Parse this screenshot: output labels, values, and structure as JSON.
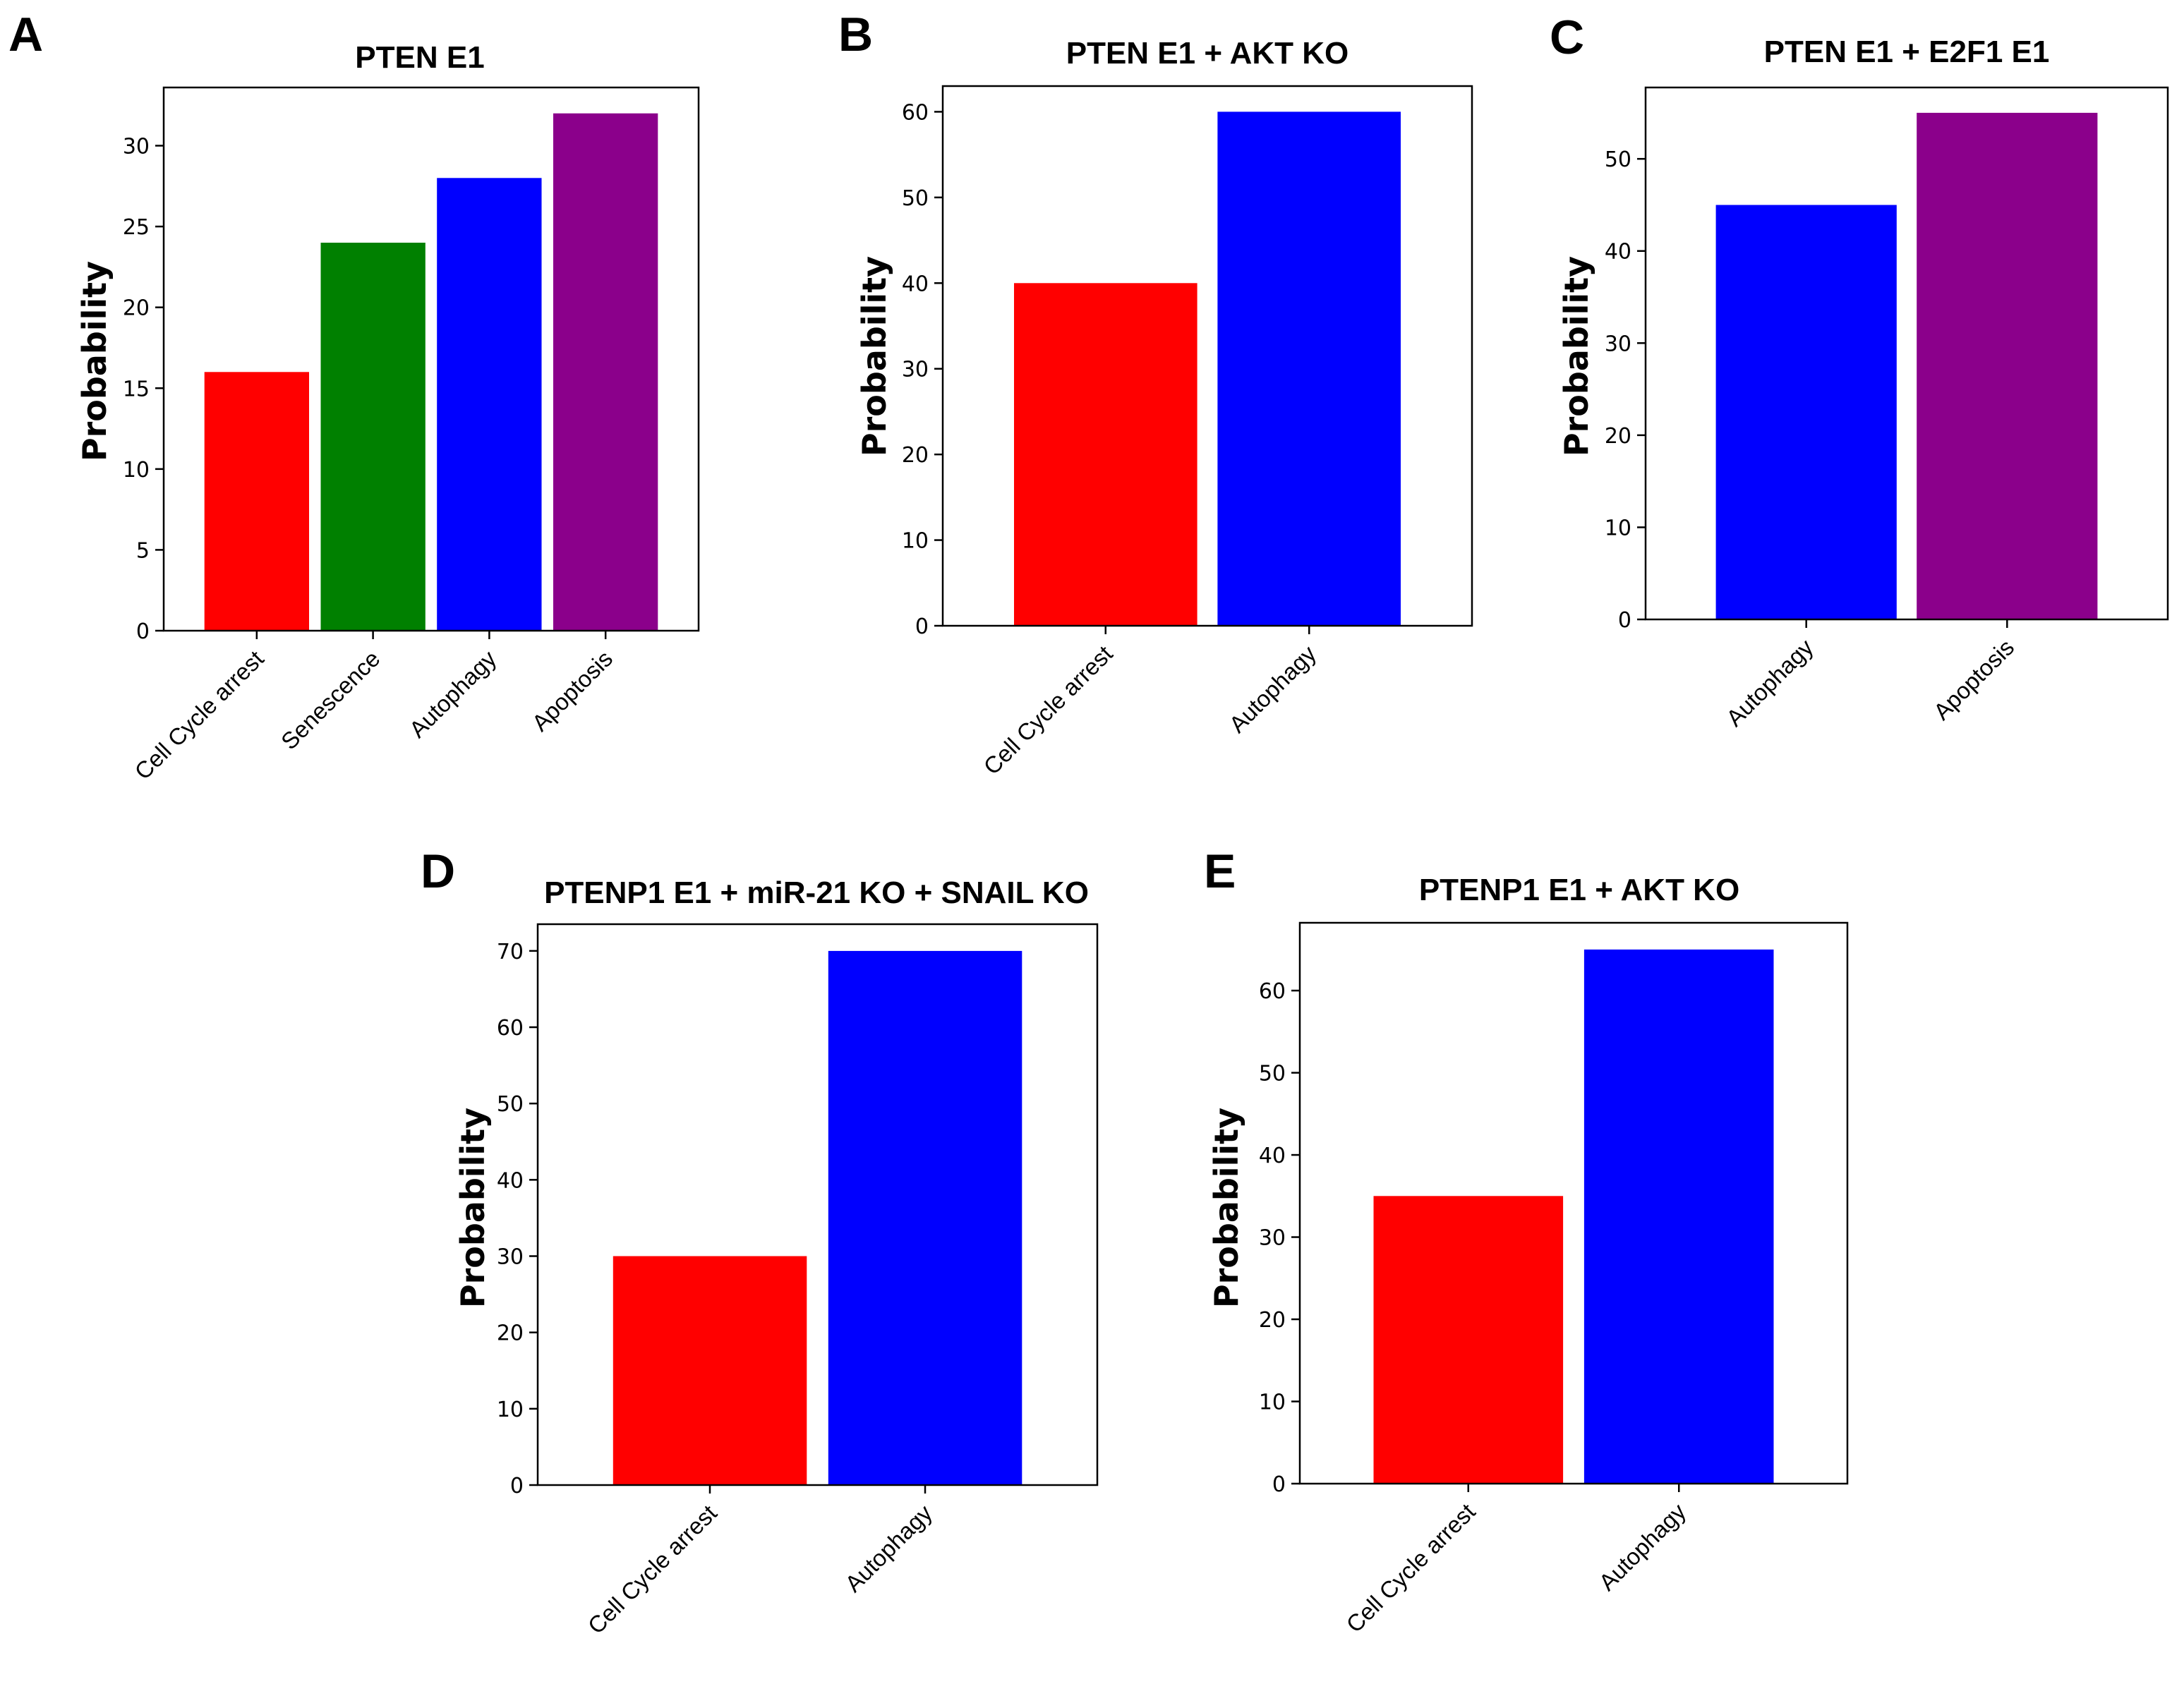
{
  "chart_data": [
    {
      "type": "bar",
      "panel": "A",
      "title": "PTEN E1",
      "ylabel": "Probability",
      "xlabel": "",
      "categories": [
        "Cell Cycle arrest",
        "Senescence",
        "Autophagy",
        "Apoptosis"
      ],
      "values": [
        16,
        24,
        28,
        32
      ],
      "colors": [
        "#ff0000",
        "#008000",
        "#0000ff",
        "#8b008b"
      ],
      "ylim": [
        0,
        33.6
      ],
      "yticks": [
        0,
        5,
        10,
        15,
        20,
        25,
        30
      ],
      "grid": false
    },
    {
      "type": "bar",
      "panel": "B",
      "title": "PTEN E1 + AKT KO",
      "ylabel": "Probability",
      "xlabel": "",
      "categories": [
        "Cell Cycle arrest",
        "Autophagy"
      ],
      "values": [
        40,
        60
      ],
      "colors": [
        "#ff0000",
        "#0000ff"
      ],
      "ylim": [
        0,
        63
      ],
      "yticks": [
        0,
        10,
        20,
        30,
        40,
        50,
        60
      ],
      "grid": false
    },
    {
      "type": "bar",
      "panel": "C",
      "title": "PTEN E1 + E2F1 E1",
      "ylabel": "Probability",
      "xlabel": "",
      "categories": [
        "Autophagy",
        "Apoptosis"
      ],
      "values": [
        45,
        55
      ],
      "colors": [
        "#0000ff",
        "#8b008b"
      ],
      "ylim": [
        0,
        57.75
      ],
      "yticks": [
        0,
        10,
        20,
        30,
        40,
        50
      ],
      "grid": false
    },
    {
      "type": "bar",
      "panel": "D",
      "title": "PTENP1 E1 + miR-21 KO + SNAIL KO",
      "ylabel": "Probability",
      "xlabel": "",
      "categories": [
        "Cell Cycle arrest",
        "Autophagy"
      ],
      "values": [
        30,
        70
      ],
      "colors": [
        "#ff0000",
        "#0000ff"
      ],
      "ylim": [
        0,
        73.5
      ],
      "yticks": [
        0,
        10,
        20,
        30,
        40,
        50,
        60,
        70
      ],
      "grid": false
    },
    {
      "type": "bar",
      "panel": "E",
      "title": "PTENP1 E1 + AKT KO",
      "ylabel": "Probability",
      "xlabel": "",
      "categories": [
        "Cell Cycle arrest",
        "Autophagy"
      ],
      "values": [
        35,
        65
      ],
      "colors": [
        "#ff0000",
        "#0000ff"
      ],
      "ylim": [
        0,
        68.25
      ],
      "yticks": [
        0,
        10,
        20,
        30,
        40,
        50,
        60
      ],
      "grid": false
    }
  ]
}
